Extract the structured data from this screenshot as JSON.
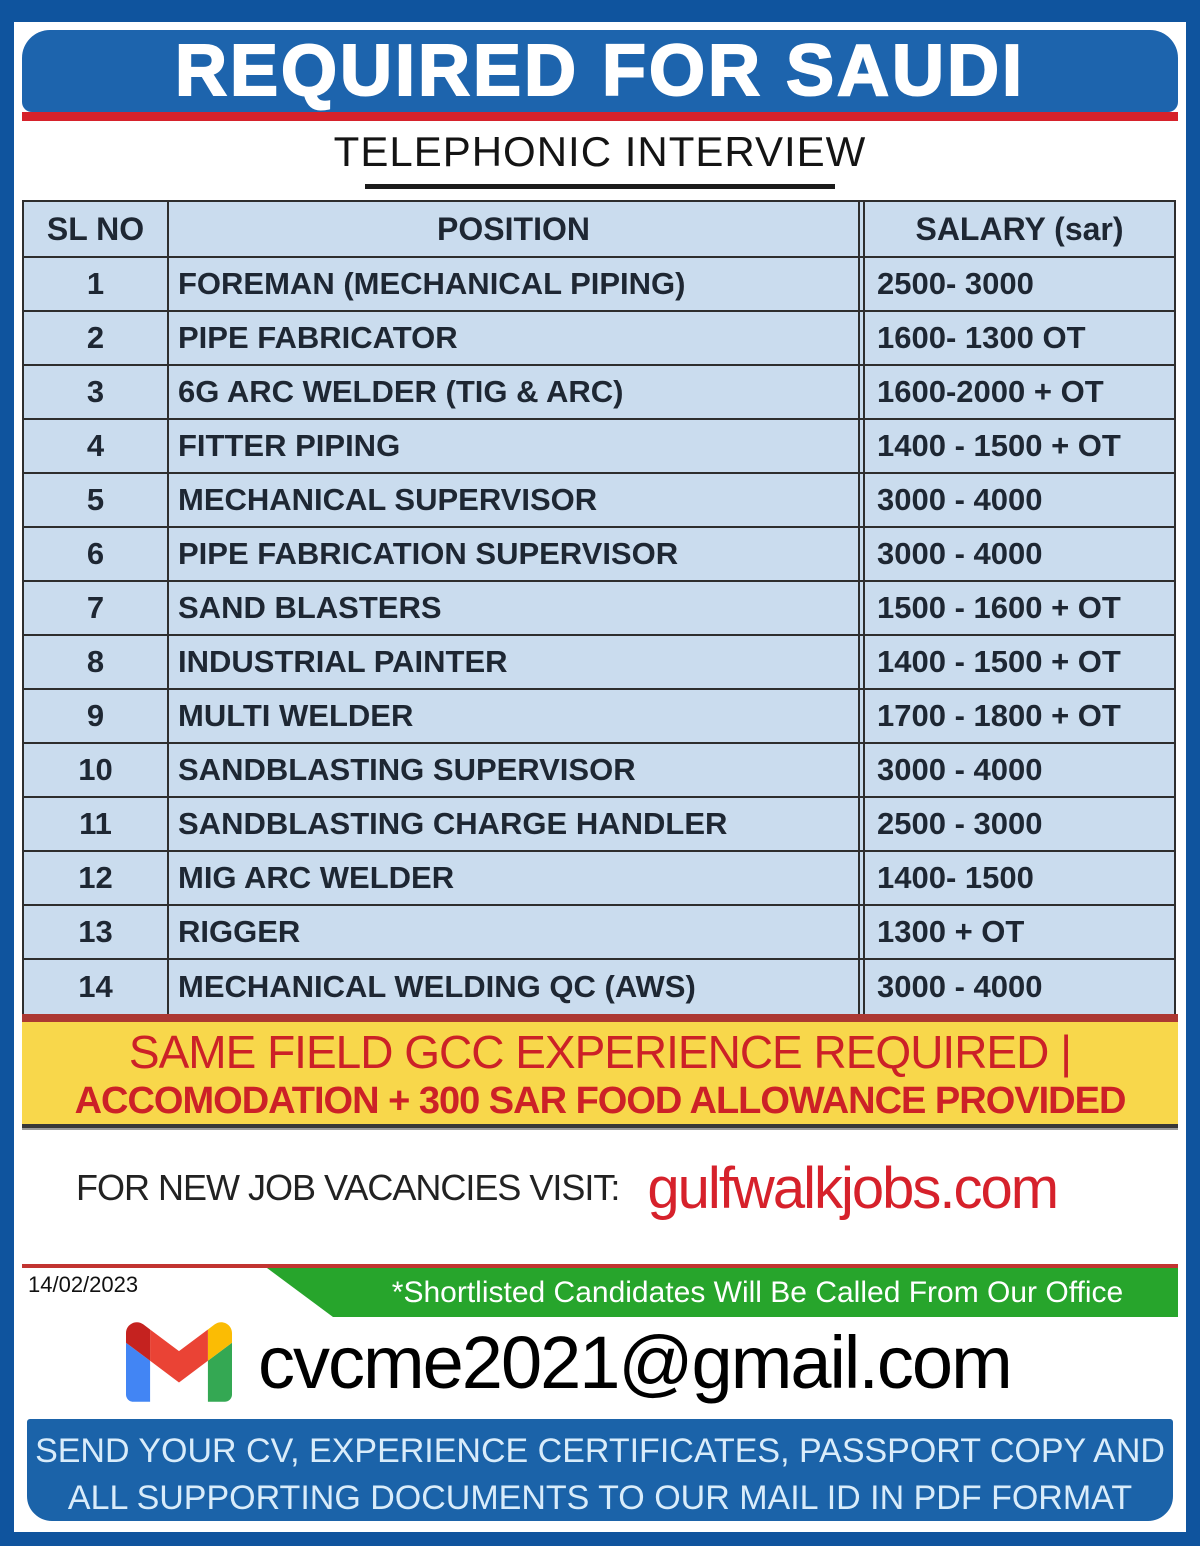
{
  "header": {
    "title": "REQUIRED FOR SAUDI",
    "subtitle": "TELEPHONIC INTERVIEW"
  },
  "table": {
    "columns": [
      "SL NO",
      "POSITION",
      "SALARY (sar)"
    ],
    "rows": [
      {
        "sl": "1",
        "position": "FOREMAN (MECHANICAL PIPING)",
        "salary": "2500- 3000"
      },
      {
        "sl": "2",
        "position": "PIPE FABRICATOR",
        "salary": "1600- 1300 OT"
      },
      {
        "sl": "3",
        "position": "6G ARC WELDER (TIG & ARC)",
        "salary": "1600-2000 + OT"
      },
      {
        "sl": "4",
        "position": "FITTER PIPING",
        "salary": "1400 - 1500 + OT"
      },
      {
        "sl": "5",
        "position": "MECHANICAL SUPERVISOR",
        "salary": "3000 - 4000"
      },
      {
        "sl": "6",
        "position": "PIPE FABRICATION SUPERVISOR",
        "salary": "3000 - 4000"
      },
      {
        "sl": "7",
        "position": "SAND BLASTERS",
        "salary": "1500 - 1600 + OT"
      },
      {
        "sl": "8",
        "position": "INDUSTRIAL PAINTER",
        "salary": "1400 - 1500 + OT"
      },
      {
        "sl": "9",
        "position": "MULTI WELDER",
        "salary": "1700 - 1800 + OT"
      },
      {
        "sl": "10",
        "position": "SANDBLASTING SUPERVISOR",
        "salary": "3000 - 4000"
      },
      {
        "sl": "11",
        "position": "SANDBLASTING CHARGE HANDLER",
        "salary": "2500 - 3000"
      },
      {
        "sl": "12",
        "position": "MIG ARC WELDER",
        "salary": "1400- 1500"
      },
      {
        "sl": "13",
        "position": "RIGGER",
        "salary": "1300 + OT"
      },
      {
        "sl": "14",
        "position": "MECHANICAL WELDING QC (AWS)",
        "salary": "3000 - 4000"
      }
    ]
  },
  "notice": {
    "line1": "SAME FIELD GCC EXPERIENCE REQUIRED |",
    "line2": "ACCOMODATION + 300 SAR FOOD ALLOWANCE PROVIDED"
  },
  "vacancies": {
    "label": "FOR NEW JOB VACANCIES VISIT:",
    "site": "gulfwalkjobs.com"
  },
  "date": "14/02/2023",
  "shortlist_banner": "*Shortlisted Candidates Will Be Called From Our Office",
  "contact": {
    "icon": "gmail-icon",
    "email": "cvcme2021@gmail.com"
  },
  "footer": {
    "line1": "SEND YOUR CV, EXPERIENCE CERTIFICATES, PASSPORT COPY AND",
    "line2": "ALL SUPPORTING DOCUMENTS TO OUR MAIL ID IN PDF FORMAT"
  },
  "colors": {
    "frame_blue": "#0f549e",
    "banner_blue": "#1d64ad",
    "stripe_red": "#d6222b",
    "table_bg": "#cadcee",
    "notice_yellow": "#f8d74b",
    "notice_red_text": "#cc2127",
    "site_red": "#d6212b",
    "shortlist_green": "#27a52c",
    "footer_blue": "#1b63a9"
  }
}
